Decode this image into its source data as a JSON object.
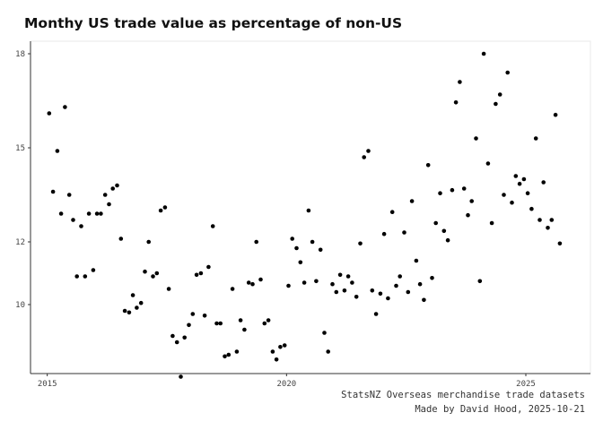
{
  "chart_data": {
    "type": "scatter",
    "title": "Monthy US trade value as percentage of non-US",
    "xlabel": "",
    "ylabel": "",
    "xlim": [
      2014.65,
      2026.35
    ],
    "ylim": [
      7.8,
      18.4
    ],
    "x_ticks": [
      {
        "value": 2015,
        "label": "2015"
      },
      {
        "value": 2020,
        "label": "2020"
      },
      {
        "value": 2025,
        "label": "2025"
      }
    ],
    "y_ticks": [
      {
        "value": 10,
        "label": "10"
      },
      {
        "value": 12,
        "label": "12"
      },
      {
        "value": 15,
        "label": "15"
      },
      {
        "value": 18,
        "label": "18"
      }
    ],
    "grid": false,
    "points": [
      [
        2015.04,
        16.1
      ],
      [
        2015.12,
        13.6
      ],
      [
        2015.21,
        14.9
      ],
      [
        2015.29,
        12.9
      ],
      [
        2015.37,
        16.3
      ],
      [
        2015.46,
        13.5
      ],
      [
        2015.54,
        12.7
      ],
      [
        2015.62,
        10.9
      ],
      [
        2015.71,
        12.5
      ],
      [
        2015.79,
        10.9
      ],
      [
        2015.87,
        12.9
      ],
      [
        2015.96,
        11.1
      ],
      [
        2016.04,
        12.9
      ],
      [
        2016.12,
        12.9
      ],
      [
        2016.21,
        13.5
      ],
      [
        2016.29,
        13.2
      ],
      [
        2016.37,
        13.7
      ],
      [
        2016.46,
        13.8
      ],
      [
        2016.54,
        12.1
      ],
      [
        2016.62,
        9.8
      ],
      [
        2016.71,
        9.75
      ],
      [
        2016.79,
        10.3
      ],
      [
        2016.87,
        9.9
      ],
      [
        2016.96,
        10.05
      ],
      [
        2017.04,
        11.05
      ],
      [
        2017.12,
        12.0
      ],
      [
        2017.21,
        10.9
      ],
      [
        2017.29,
        11.0
      ],
      [
        2017.37,
        13.0
      ],
      [
        2017.46,
        13.1
      ],
      [
        2017.54,
        10.5
      ],
      [
        2017.62,
        9.0
      ],
      [
        2017.71,
        8.8
      ],
      [
        2017.79,
        7.7
      ],
      [
        2017.87,
        8.95
      ],
      [
        2017.96,
        9.35
      ],
      [
        2018.04,
        9.7
      ],
      [
        2018.12,
        10.95
      ],
      [
        2018.21,
        11.0
      ],
      [
        2018.29,
        9.65
      ],
      [
        2018.37,
        11.2
      ],
      [
        2018.46,
        12.5
      ],
      [
        2018.54,
        9.4
      ],
      [
        2018.62,
        9.4
      ],
      [
        2018.71,
        8.35
      ],
      [
        2018.79,
        8.4
      ],
      [
        2018.87,
        10.5
      ],
      [
        2018.96,
        8.5
      ],
      [
        2019.04,
        9.5
      ],
      [
        2019.12,
        9.2
      ],
      [
        2019.21,
        10.7
      ],
      [
        2019.29,
        10.65
      ],
      [
        2019.37,
        12.0
      ],
      [
        2019.46,
        10.8
      ],
      [
        2019.54,
        9.4
      ],
      [
        2019.62,
        9.5
      ],
      [
        2019.71,
        8.5
      ],
      [
        2019.79,
        8.25
      ],
      [
        2019.87,
        8.65
      ],
      [
        2019.96,
        8.7
      ],
      [
        2020.04,
        10.6
      ],
      [
        2020.12,
        12.1
      ],
      [
        2020.21,
        11.8
      ],
      [
        2020.29,
        11.35
      ],
      [
        2020.37,
        10.7
      ],
      [
        2020.46,
        13.0
      ],
      [
        2020.54,
        12.0
      ],
      [
        2020.62,
        10.75
      ],
      [
        2020.71,
        11.75
      ],
      [
        2020.79,
        9.1
      ],
      [
        2020.87,
        8.5
      ],
      [
        2020.96,
        10.65
      ],
      [
        2021.04,
        10.4
      ],
      [
        2021.12,
        10.95
      ],
      [
        2021.21,
        10.45
      ],
      [
        2021.29,
        10.9
      ],
      [
        2021.37,
        10.7
      ],
      [
        2021.46,
        10.25
      ],
      [
        2021.54,
        11.95
      ],
      [
        2021.62,
        14.7
      ],
      [
        2021.71,
        14.9
      ],
      [
        2021.79,
        10.45
      ],
      [
        2021.87,
        9.7
      ],
      [
        2021.96,
        10.35
      ],
      [
        2022.04,
        12.25
      ],
      [
        2022.12,
        10.2
      ],
      [
        2022.21,
        12.95
      ],
      [
        2022.29,
        10.6
      ],
      [
        2022.37,
        10.9
      ],
      [
        2022.46,
        12.3
      ],
      [
        2022.54,
        10.4
      ],
      [
        2022.62,
        13.3
      ],
      [
        2022.71,
        11.4
      ],
      [
        2022.79,
        10.65
      ],
      [
        2022.87,
        10.15
      ],
      [
        2022.96,
        14.45
      ],
      [
        2023.04,
        10.85
      ],
      [
        2023.12,
        12.6
      ],
      [
        2023.21,
        13.55
      ],
      [
        2023.29,
        12.35
      ],
      [
        2023.37,
        12.05
      ],
      [
        2023.46,
        13.65
      ],
      [
        2023.54,
        16.45
      ],
      [
        2023.62,
        17.1
      ],
      [
        2023.71,
        13.7
      ],
      [
        2023.79,
        12.85
      ],
      [
        2023.87,
        13.3
      ],
      [
        2023.96,
        15.3
      ],
      [
        2024.04,
        10.75
      ],
      [
        2024.12,
        18.0
      ],
      [
        2024.21,
        14.5
      ],
      [
        2024.29,
        12.6
      ],
      [
        2024.37,
        16.4
      ],
      [
        2024.46,
        16.7
      ],
      [
        2024.54,
        13.5
      ],
      [
        2024.62,
        17.4
      ],
      [
        2024.71,
        13.25
      ],
      [
        2024.79,
        14.1
      ],
      [
        2024.87,
        13.85
      ],
      [
        2024.96,
        14.0
      ],
      [
        2025.04,
        13.55
      ],
      [
        2025.12,
        13.05
      ],
      [
        2025.21,
        15.3
      ],
      [
        2025.29,
        12.7
      ],
      [
        2025.37,
        13.9
      ],
      [
        2025.46,
        12.45
      ],
      [
        2025.54,
        12.7
      ],
      [
        2025.62,
        16.05
      ],
      [
        2025.71,
        11.95
      ]
    ]
  },
  "captions": {
    "source": "StatsNZ Overseas merchandise trade datasets",
    "credit": "Made by David Hood, 2025-10-21"
  },
  "colors": {
    "point": "#000000",
    "axis": "#333333",
    "panel_border": "#e8e8e8"
  }
}
